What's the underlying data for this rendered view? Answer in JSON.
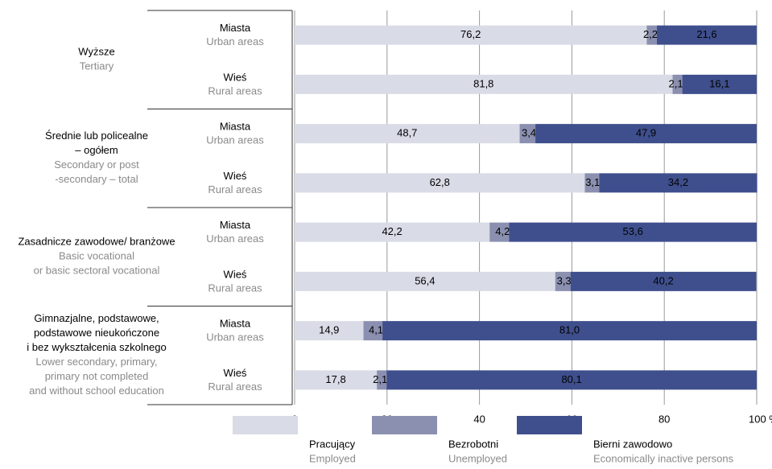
{
  "chart_data": {
    "type": "stacked-barh",
    "groups": [
      {
        "label": [
          "Wyższe"
        ],
        "label_en": [
          "Tertiary"
        ]
      },
      {
        "label": [
          "Średnie lub policealne",
          "– ogółem"
        ],
        "label_en": [
          "Secondary or post",
          "-secondary – total"
        ]
      },
      {
        "label": [
          "Zasadnicze zawodowe/ branżowe"
        ],
        "label_en": [
          "Basic vocational",
          "or basic sectoral vocational"
        ]
      },
      {
        "label": [
          "Gimnazjalne, podstawowe,",
          "podstawowe nieukończone",
          "i bez wykształcenia szkolnego"
        ],
        "label_en": [
          "Lower secondary, primary,",
          "primary not completed",
          "and without school education"
        ]
      }
    ],
    "categories": [
      "Miasta",
      "Wieś",
      "Miasta",
      "Wieś",
      "Miasta",
      "Wieś",
      "Miasta",
      "Wieś"
    ],
    "categories_en": [
      "Urban areas",
      "Rural areas",
      "Urban areas",
      "Rural areas",
      "Urban areas",
      "Rural areas",
      "Urban areas",
      "Rural areas"
    ],
    "series": [
      {
        "name": "Pracujący",
        "name_en": "Employed",
        "color": "#d9dbe6",
        "values": [
          76.2,
          81.8,
          48.7,
          62.8,
          42.2,
          56.4,
          14.9,
          17.8
        ],
        "value_labels": [
          "76,2",
          "81,8",
          "48,7",
          "62,8",
          "42,2",
          "56,4",
          "14,9",
          "17,8"
        ]
      },
      {
        "name": "Bezrobotni",
        "name_en": "Unemployed",
        "color": "#8b90b0",
        "values": [
          2.2,
          2.1,
          3.4,
          3.1,
          4.2,
          3.3,
          4.1,
          2.1
        ],
        "value_labels": [
          "2,2",
          "2,1",
          "3,4",
          "3,1",
          "4,2",
          "3,3",
          "4,1",
          "2,1"
        ]
      },
      {
        "name": "Bierni zawodowo",
        "name_en": "Economically inactive persons",
        "color": "#3f4f8d",
        "values": [
          21.6,
          16.1,
          47.9,
          34.2,
          53.6,
          40.2,
          81.0,
          80.1
        ],
        "value_labels": [
          "21,6",
          "16,1",
          "47,9",
          "34,2",
          "53,6",
          "40,2",
          "81,0",
          "80,1"
        ]
      }
    ],
    "xlim": [
      0,
      100
    ],
    "xticks": [
      0,
      20,
      40,
      60,
      80,
      {
        "value": 100,
        "label": "100 %"
      }
    ],
    "grid": true
  }
}
